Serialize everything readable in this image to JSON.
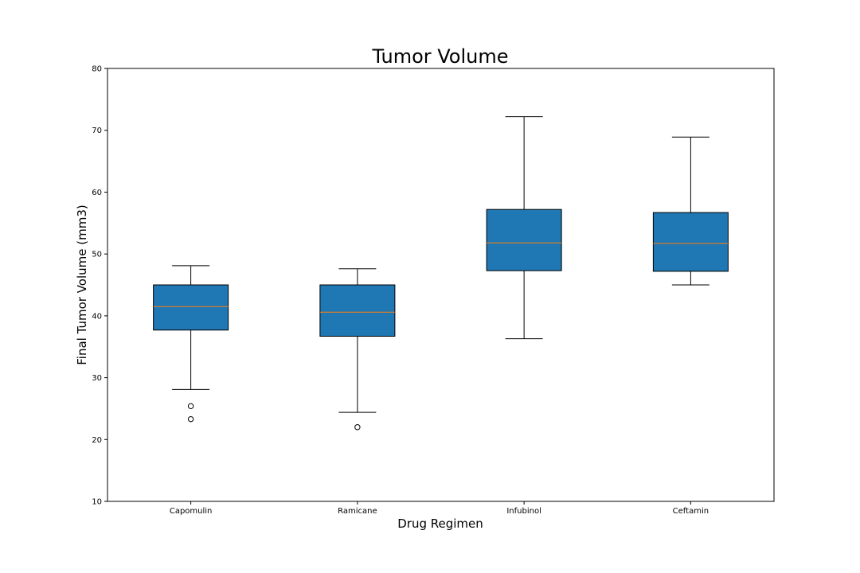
{
  "chart_data": {
    "type": "box",
    "title": "Tumor Volume",
    "xlabel": "Drug Regimen",
    "ylabel": "Final Tumor Volume (mm3)",
    "ylim": [
      10,
      80
    ],
    "yticks": [
      10,
      20,
      30,
      40,
      50,
      60,
      70,
      80
    ],
    "grid": false,
    "categories": [
      "Capomulin",
      "Ramicane",
      "Infubinol",
      "Ceftamin"
    ],
    "boxes": [
      {
        "name": "Capomulin",
        "whisker_low": 28.1,
        "q1": 37.7,
        "median": 41.5,
        "q3": 45.0,
        "whisker_high": 48.1,
        "outliers": [
          25.4,
          23.3
        ]
      },
      {
        "name": "Ramicane",
        "whisker_low": 24.4,
        "q1": 36.7,
        "median": 40.6,
        "q3": 45.0,
        "whisker_high": 47.6,
        "outliers": [
          22.0
        ]
      },
      {
        "name": "Infubinol",
        "whisker_low": 36.3,
        "q1": 47.3,
        "median": 51.8,
        "q3": 57.2,
        "whisker_high": 72.2,
        "outliers": []
      },
      {
        "name": "Ceftamin",
        "whisker_low": 45.0,
        "q1": 47.2,
        "median": 51.7,
        "q3": 56.7,
        "whisker_high": 68.9,
        "outliers": []
      }
    ],
    "colors": {
      "box_fill": "#1f77b4",
      "median_line": "#ff7f0e",
      "line": "#000000"
    }
  }
}
